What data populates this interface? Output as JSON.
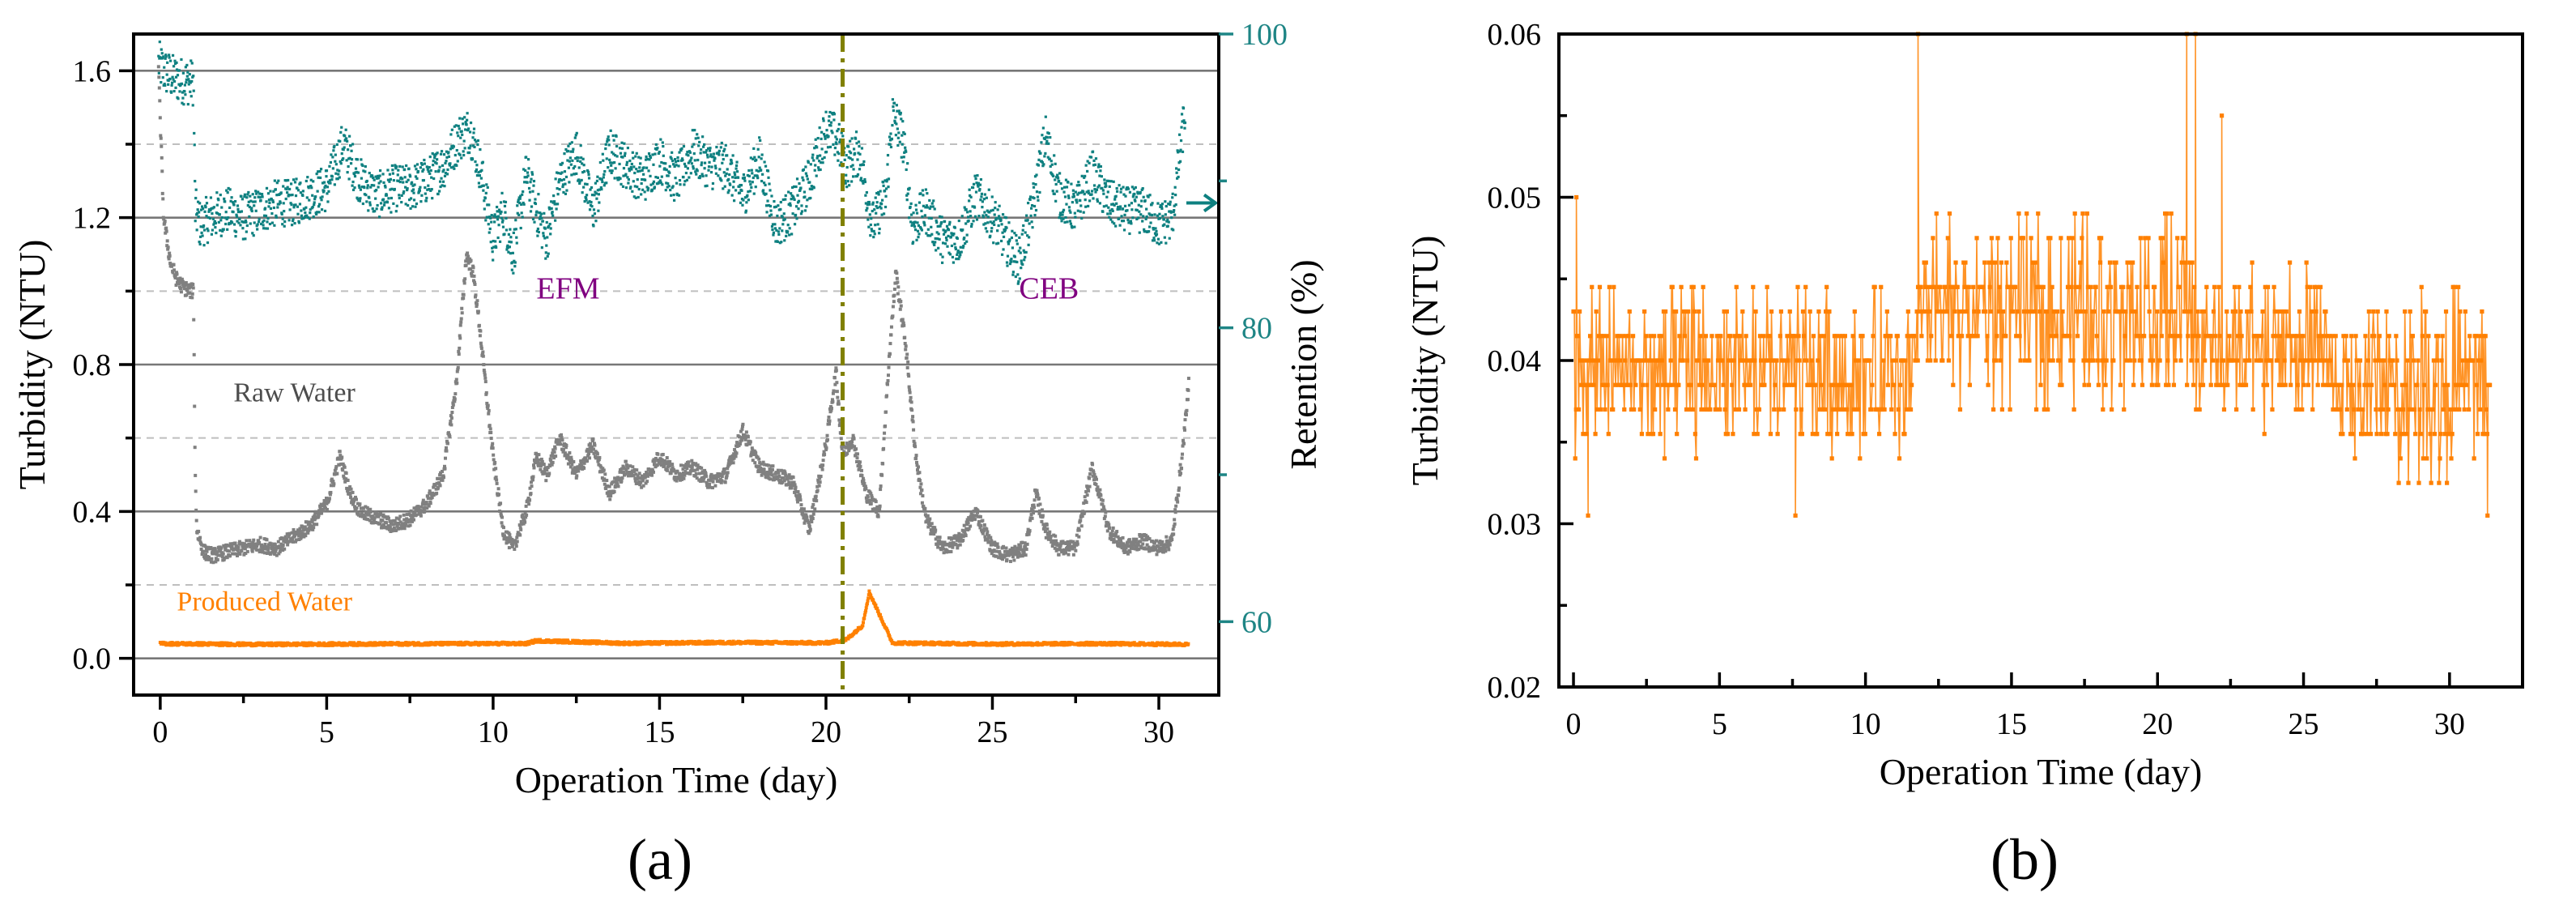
{
  "chart_data": [
    {
      "panel": "(a)",
      "type": "scatter",
      "xlabel": "Operation Time (day)",
      "ylabel": "Turbidity (NTU)",
      "y2label": "Retention (%)",
      "xlim": [
        -0.8,
        31.8
      ],
      "ylim": [
        -0.1,
        1.7
      ],
      "y2lim": [
        55,
        100
      ],
      "xticks": [
        0,
        5,
        10,
        15,
        20,
        25,
        30
      ],
      "yticks": [
        0.0,
        0.4,
        0.8,
        1.2,
        1.6
      ],
      "y2ticks": [
        60,
        80,
        100
      ],
      "grid": true,
      "colors": {
        "raw": "#808080",
        "produced": "#ff8000",
        "retention": "#0e8080",
        "ceb_line": "#808000",
        "annotation": "#800080"
      },
      "series": [
        {
          "name": "Raw Water",
          "axis": "left",
          "x": [
            -0.05,
            0.1,
            0.3,
            0.5,
            0.7,
            0.9,
            1.0,
            1.05,
            1.1,
            1.3,
            1.6,
            2.0,
            2.5,
            3.0,
            3.5,
            4.0,
            4.5,
            5.0,
            5.4,
            5.7,
            6.0,
            6.5,
            7.0,
            7.5,
            8.0,
            8.5,
            8.9,
            9.2,
            9.4,
            9.6,
            9.8,
            10.0,
            10.3,
            10.6,
            11.0,
            11.3,
            11.6,
            12.0,
            12.5,
            13.0,
            13.5,
            14.0,
            14.5,
            15.0,
            15.5,
            16.0,
            16.5,
            17.0,
            17.5,
            18.0,
            18.5,
            19.0,
            19.5,
            20.0,
            20.3,
            20.5,
            20.8,
            21.2,
            21.6,
            21.9,
            22.1,
            22.4,
            22.7,
            23.0,
            23.5,
            24.0,
            24.5,
            25.0,
            25.5,
            26.0,
            26.3,
            26.6,
            27.0,
            27.5,
            28.0,
            28.5,
            29.0,
            29.5,
            30.0,
            30.4,
            30.7,
            30.9
          ],
          "y": [
            1.6,
            1.2,
            1.08,
            1.03,
            1.01,
            1.0,
            1.0,
            0.5,
            0.35,
            0.29,
            0.28,
            0.29,
            0.3,
            0.31,
            0.3,
            0.33,
            0.36,
            0.42,
            0.55,
            0.45,
            0.4,
            0.38,
            0.36,
            0.38,
            0.42,
            0.5,
            0.75,
            1.1,
            1.05,
            0.9,
            0.72,
            0.55,
            0.35,
            0.3,
            0.4,
            0.55,
            0.5,
            0.6,
            0.5,
            0.58,
            0.45,
            0.52,
            0.48,
            0.55,
            0.5,
            0.52,
            0.48,
            0.5,
            0.62,
            0.52,
            0.5,
            0.48,
            0.35,
            0.58,
            0.78,
            0.55,
            0.6,
            0.45,
            0.4,
            0.82,
            1.05,
            0.85,
            0.55,
            0.38,
            0.3,
            0.32,
            0.4,
            0.3,
            0.28,
            0.3,
            0.45,
            0.35,
            0.3,
            0.3,
            0.52,
            0.35,
            0.3,
            0.32,
            0.3,
            0.32,
            0.55,
            0.75
          ]
        },
        {
          "name": "Produced Water",
          "axis": "left",
          "x": [
            0,
            3,
            6,
            9,
            11,
            11.3,
            14,
            17,
            20,
            20.6,
            21.1,
            21.3,
            22,
            25,
            28,
            30.9
          ],
          "y": [
            0.04,
            0.038,
            0.039,
            0.04,
            0.04,
            0.048,
            0.041,
            0.043,
            0.042,
            0.05,
            0.09,
            0.18,
            0.042,
            0.039,
            0.04,
            0.038
          ]
        },
        {
          "name": "Retention",
          "axis": "right",
          "x": [
            -0.05,
            0.1,
            0.4,
            0.7,
            1.0,
            1.05,
            1.2,
            1.5,
            2.0,
            2.5,
            3.0,
            3.5,
            4.0,
            4.5,
            5.0,
            5.5,
            6.0,
            6.5,
            7.0,
            7.5,
            8.0,
            8.5,
            9.0,
            9.3,
            9.6,
            10.0,
            10.3,
            10.6,
            11.0,
            11.3,
            11.6,
            12.0,
            12.5,
            13.0,
            13.5,
            14.0,
            14.5,
            15.0,
            15.5,
            16.0,
            16.5,
            17.0,
            17.5,
            18.0,
            18.5,
            19.0,
            19.5,
            20.0,
            20.3,
            20.6,
            21.0,
            21.4,
            21.8,
            22.0,
            22.3,
            22.6,
            23.0,
            23.5,
            24.0,
            24.5,
            25.0,
            25.4,
            25.8,
            26.2,
            26.6,
            27.0,
            27.5,
            28.0,
            28.5,
            29.0,
            29.5,
            30.0,
            30.4,
            30.8
          ],
          "y": [
            98,
            97.5,
            97,
            96.8,
            96.7,
            88,
            87,
            87.5,
            88,
            87.5,
            88,
            88.5,
            88.5,
            89,
            89.5,
            92.5,
            90,
            89,
            89.5,
            89.5,
            90,
            91,
            93,
            93.5,
            91,
            86,
            88,
            85,
            90.5,
            88,
            86,
            90,
            92,
            88,
            92,
            91,
            90,
            91.5,
            90,
            92,
            91,
            91,
            89,
            91.5,
            87,
            88,
            90,
            93.5,
            93,
            91,
            92,
            87,
            89,
            94.5,
            93,
            87,
            88,
            86,
            86,
            89,
            87.5,
            86,
            84.5,
            88,
            93,
            89,
            88,
            90.5,
            88.5,
            88,
            88,
            87,
            87.5,
            95
          ]
        }
      ],
      "vline": {
        "x": 20.5,
        "style": "dash-dot"
      },
      "annotations": [
        {
          "text": "EFM",
          "x": 11.3,
          "y": 0.98
        },
        {
          "text": "CEB",
          "x": 25.8,
          "y": 0.98
        },
        {
          "text": "Raw Water",
          "x": 2.2,
          "y": 0.7
        },
        {
          "text": "Produced Water",
          "x": 0.5,
          "y": 0.13
        }
      ]
    },
    {
      "panel": "(b)",
      "type": "line",
      "xlabel": "Operation Time (day)",
      "ylabel": "Turbidity (NTU)",
      "xlim": [
        -0.5,
        32.5
      ],
      "ylim": [
        0.02,
        0.06
      ],
      "xticks": [
        0,
        5,
        10,
        15,
        20,
        25,
        30
      ],
      "yticks": [
        0.02,
        0.03,
        0.04,
        0.05,
        0.06
      ],
      "grid": false,
      "color": "#ff8000",
      "segments": [
        {
          "x_range": [
            0,
            11.8
          ],
          "mean": 0.039,
          "low": 0.0335,
          "high": 0.0445
        },
        {
          "x_range": [
            11.8,
            21.2
          ],
          "mean": 0.0425,
          "low": 0.0365,
          "high": 0.049
        },
        {
          "x_range": [
            21.2,
            25.8
          ],
          "mean": 0.0405,
          "low": 0.035,
          "high": 0.046
        },
        {
          "x_range": [
            25.8,
            31.4
          ],
          "mean": 0.038,
          "low": 0.0325,
          "high": 0.0445
        }
      ],
      "spikes": [
        {
          "x": 0.1,
          "y": 0.05
        },
        {
          "x": 11.8,
          "y": 0.06
        },
        {
          "x": 21.0,
          "y": 0.06
        },
        {
          "x": 21.3,
          "y": 0.06
        },
        {
          "x": 22.2,
          "y": 0.055
        },
        {
          "x": 0.5,
          "y": 0.0305
        },
        {
          "x": 7.6,
          "y": 0.0305
        },
        {
          "x": 31.3,
          "y": 0.0305
        }
      ]
    }
  ]
}
